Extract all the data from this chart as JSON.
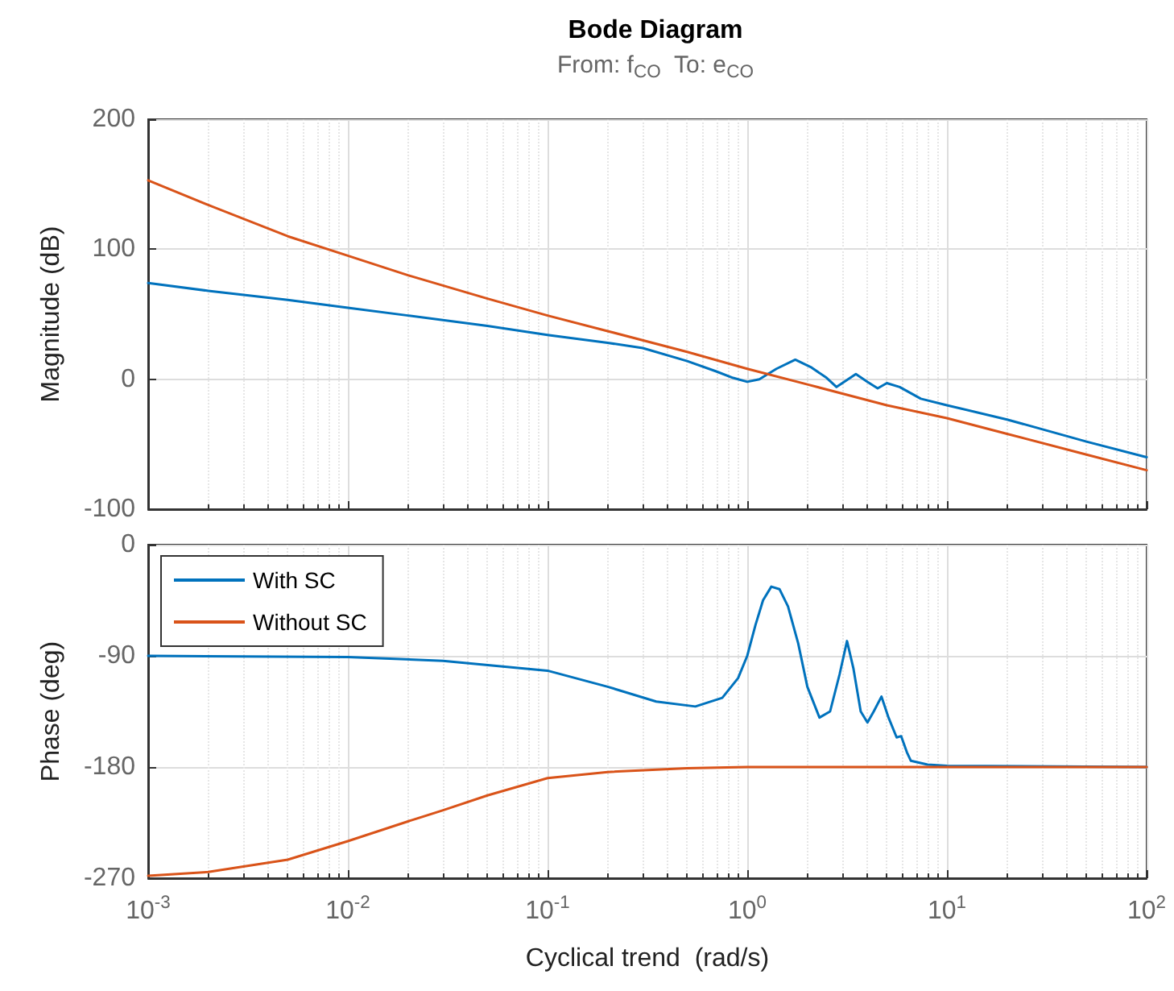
{
  "chart_data": [
    {
      "type": "line",
      "title": "Bode Diagram",
      "subtitle": "From: f$_{CO}$  To: e$_{CO}$",
      "ylabel": "Magnitude (dB)",
      "log": "x",
      "xlim": [
        0.001,
        100
      ],
      "ylim": [
        -100,
        200
      ],
      "yticks": [
        -100,
        0,
        100,
        200
      ],
      "grid": true,
      "tick_labels": "y",
      "marker": "none",
      "line_style": "solid",
      "legend": false,
      "series": [
        {
          "color": "#0072bd",
          "x": [
            0.001,
            0.002,
            0.005,
            0.01,
            0.02,
            0.05,
            0.1,
            0.2,
            0.3,
            0.5,
            0.7,
            0.85,
            1.0,
            1.15,
            1.4,
            1.74,
            2.1,
            2.5,
            2.8,
            3.5,
            4.0,
            4.5,
            5.0,
            5.8,
            7.4,
            10,
            20,
            50,
            100
          ],
          "values": [
            74,
            68,
            61,
            55,
            49,
            41,
            34,
            28,
            24,
            14,
            6,
            1,
            -2,
            0,
            8,
            15,
            9,
            1,
            -6,
            4,
            -2,
            -7,
            -3,
            -6,
            -15,
            -20,
            -31,
            -48,
            -60
          ]
        },
        {
          "color": "#d95319",
          "x": [
            0.001,
            0.002,
            0.005,
            0.01,
            0.02,
            0.05,
            0.1,
            0.2,
            0.5,
            1,
            2,
            5,
            10,
            20,
            50,
            100
          ],
          "values": [
            153,
            134,
            110,
            95,
            80,
            62,
            49,
            37,
            21,
            8,
            -4,
            -20,
            -30,
            -42,
            -58,
            -70
          ]
        }
      ]
    },
    {
      "type": "line",
      "xlabel": "Cyclical trend  (rad/s)",
      "ylabel": "Phase (deg)",
      "log": "x",
      "xlim": [
        0.001,
        100
      ],
      "xticks": [
        {
          "value": 0.001,
          "label": "10$^{-3}$"
        },
        {
          "value": 0.01,
          "label": "10$^{-2}$"
        },
        {
          "value": 0.1,
          "label": "10$^{-1}$"
        },
        {
          "value": 1,
          "label": "10$^{0}$"
        },
        {
          "value": 10,
          "label": "10$^{1}$"
        },
        {
          "value": 100,
          "label": "10$^{2}$"
        }
      ],
      "ylim": [
        -270,
        0
      ],
      "yticks": [
        -270,
        -180,
        -90,
        0
      ],
      "grid": true,
      "marker": "none",
      "line_style": "solid",
      "legend": "top left",
      "series": [
        {
          "name": "With SC",
          "color": "#0072bd",
          "x": [
            0.001,
            0.01,
            0.03,
            0.1,
            0.2,
            0.35,
            0.55,
            0.75,
            0.9,
            1.0,
            1.1,
            1.2,
            1.32,
            1.45,
            1.6,
            1.8,
            2.0,
            2.3,
            2.6,
            2.9,
            3.16,
            3.4,
            3.7,
            4.0,
            4.3,
            4.7,
            5.1,
            5.6,
            5.9,
            6.3,
            6.6,
            8,
            10,
            100
          ],
          "values": [
            -90,
            -91,
            -94,
            -102,
            -115,
            -127,
            -131,
            -124,
            -108,
            -90,
            -65,
            -45,
            -34,
            -36,
            -50,
            -80,
            -115,
            -140,
            -135,
            -105,
            -78,
            -100,
            -135,
            -144,
            -135,
            -123,
            -140,
            -156,
            -155,
            -168,
            -175,
            -178,
            -179,
            -180
          ]
        },
        {
          "name": "Without SC",
          "color": "#d95319",
          "x": [
            0.001,
            0.002,
            0.005,
            0.01,
            0.02,
            0.03,
            0.05,
            0.1,
            0.2,
            0.5,
            1,
            10,
            100
          ],
          "values": [
            -268,
            -265,
            -255,
            -240,
            -224,
            -215,
            -203,
            -189,
            -184,
            -181,
            -180,
            -180,
            -180
          ]
        }
      ]
    }
  ]
}
